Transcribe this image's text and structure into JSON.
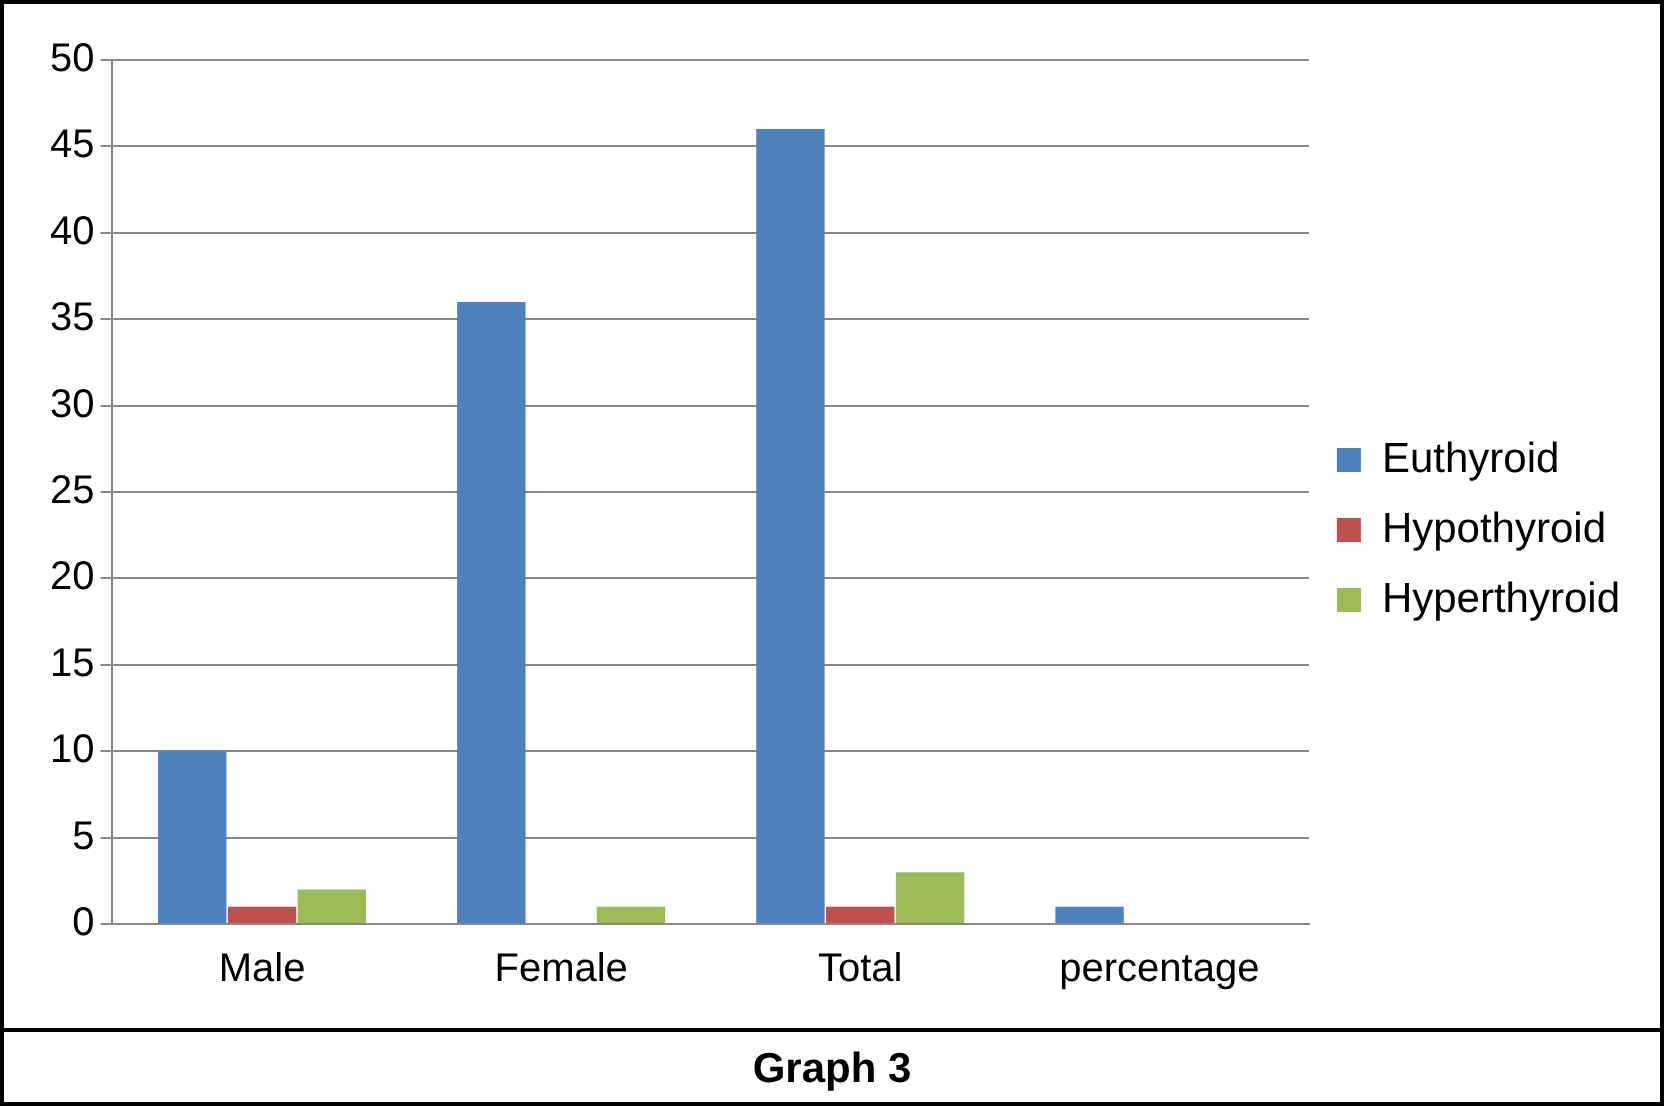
{
  "chart_data": {
    "type": "bar",
    "title": "Graph 3",
    "categories": [
      "Male",
      "Female",
      "Total",
      "percentage"
    ],
    "series": [
      {
        "name": "Euthyroid",
        "color": "#4f81bd",
        "values": [
          10,
          36,
          46,
          1
        ]
      },
      {
        "name": "Hypothyroid",
        "color": "#c0504d",
        "values": [
          1,
          0,
          1,
          0
        ]
      },
      {
        "name": "Hyperthyroid",
        "color": "#9bbb59",
        "values": [
          2,
          1,
          3,
          0
        ]
      }
    ],
    "ylim": [
      0,
      50
    ],
    "yticks": [
      0,
      5,
      10,
      15,
      20,
      25,
      30,
      35,
      40,
      45,
      50
    ],
    "grid": "y",
    "legend": "right"
  }
}
